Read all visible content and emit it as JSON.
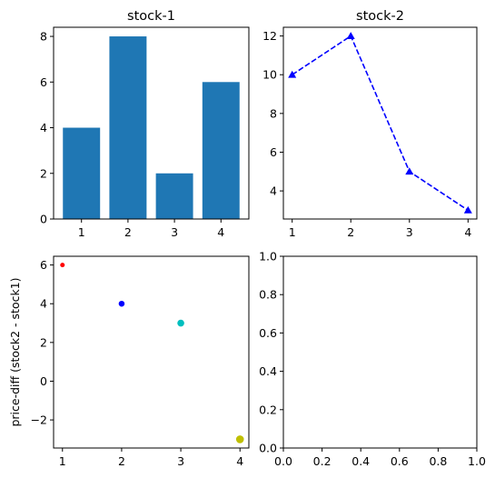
{
  "chart_data": [
    {
      "type": "bar",
      "title": "stock-1",
      "categories": [
        "1",
        "2",
        "3",
        "4"
      ],
      "values": [
        4,
        8,
        2,
        6
      ],
      "color": "#1f77b4",
      "xlim": [
        0.4,
        4.6
      ],
      "ylim": [
        0,
        8.4
      ],
      "xticks": [
        1,
        2,
        3,
        4
      ],
      "yticks": [
        0,
        2,
        4,
        6,
        8
      ]
    },
    {
      "type": "line",
      "title": "stock-2",
      "x": [
        1,
        2,
        3,
        4
      ],
      "y": [
        10,
        12,
        5,
        3
      ],
      "color": "#0000ff",
      "line_style": "dashed",
      "marker": "triangle-up",
      "xlim": [
        0.85,
        4.15
      ],
      "ylim": [
        2.55,
        12.45
      ],
      "xticks": [
        1,
        2,
        3,
        4
      ],
      "yticks": [
        4,
        6,
        8,
        10,
        12
      ]
    },
    {
      "type": "scatter",
      "ylabel": "price-diff (stock2 - stock1)",
      "x": [
        1,
        2,
        3,
        4
      ],
      "y": [
        6,
        4,
        3,
        -3
      ],
      "colors": [
        "#ff0000",
        "#0000ff",
        "#00bfbf",
        "#bfbf00"
      ],
      "sizes": [
        1,
        2,
        3,
        4
      ],
      "xlim": [
        0.85,
        4.15
      ],
      "ylim": [
        -3.45,
        6.45
      ],
      "xticks": [
        1,
        2,
        3,
        4
      ],
      "yticks": [
        -2,
        0,
        2,
        4,
        6
      ]
    },
    {
      "type": "scatter",
      "x": [],
      "y": [],
      "xlim": [
        0,
        1
      ],
      "ylim": [
        0,
        1
      ],
      "xticks": [
        "0.0",
        "0.2",
        "0.4",
        "0.6",
        "0.8",
        "1.0"
      ],
      "yticks": [
        "0.0",
        "0.2",
        "0.4",
        "0.6",
        "0.8",
        "1.0"
      ]
    }
  ]
}
